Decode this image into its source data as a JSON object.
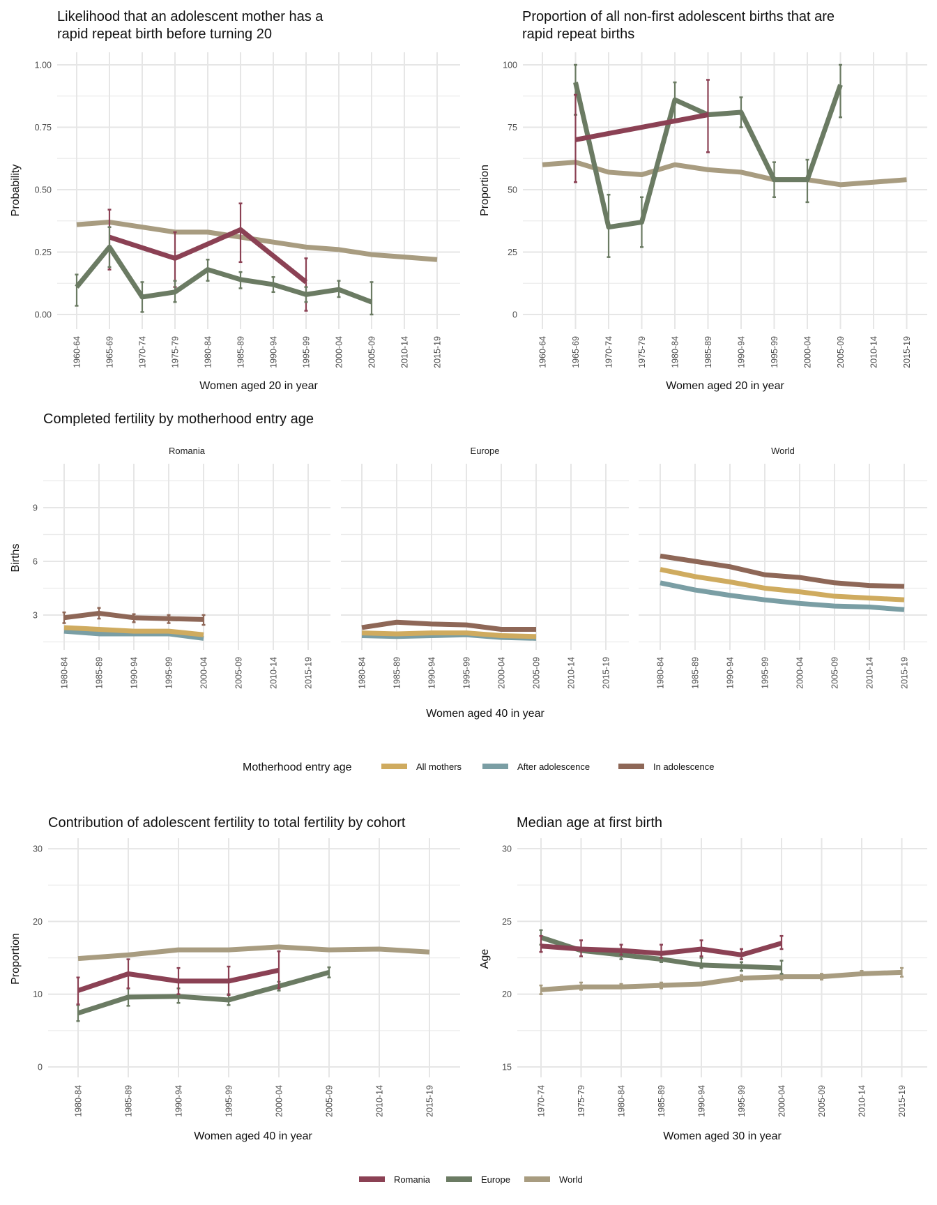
{
  "colors": {
    "Romania": "#8B4154",
    "Europe": "#6B7B63",
    "World": "#A89C80",
    "All mothers": "#CFAB5F",
    "After adolescence": "#7A9EA4",
    "In adolescence": "#8E6757"
  },
  "legend_region": {
    "entries": [
      "Romania",
      "Europe",
      "World"
    ]
  },
  "legend_entry": {
    "title": "Motherhood entry age",
    "entries": [
      "All mothers",
      "After adolescence",
      "In adolescence"
    ]
  },
  "chart_data": [
    {
      "id": "rapid-repeat-likelihood",
      "type": "line",
      "title_lines": [
        "Likelihood that an adolescent mother has a",
        "rapid repeat birth before turning 20"
      ],
      "xlabel": "Women aged 20 in year",
      "ylabel": "Probability",
      "ylim": [
        0,
        1
      ],
      "yticks": [
        0,
        0.25,
        0.5,
        0.75,
        1.0
      ],
      "ytick_labels": [
        "0.00",
        "0.25",
        "0.50",
        "0.75",
        "1.00"
      ],
      "grid": true,
      "categories": [
        "1960-64",
        "1965-69",
        "1970-74",
        "1975-79",
        "1980-84",
        "1985-89",
        "1990-94",
        "1995-99",
        "2000-04",
        "2005-09",
        "2010-14",
        "2015-19"
      ],
      "series": [
        {
          "name": "World",
          "values": [
            0.36,
            0.37,
            0.35,
            0.33,
            0.33,
            0.31,
            0.29,
            0.27,
            0.26,
            0.24,
            0.23,
            0.22
          ],
          "errors": null
        },
        {
          "name": "Romania",
          "values": [
            null,
            0.31,
            null,
            0.225,
            null,
            0.34,
            null,
            0.13,
            null,
            null,
            null,
            null
          ],
          "errors": [
            null,
            [
              0.18,
              0.42
            ],
            null,
            [
              0.11,
              0.33
            ],
            null,
            [
              0.21,
              0.445
            ],
            null,
            [
              0.015,
              0.225
            ],
            null,
            null,
            null,
            null
          ]
        },
        {
          "name": "Europe",
          "values": [
            0.11,
            0.27,
            0.07,
            0.09,
            0.18,
            0.14,
            0.12,
            0.08,
            0.1,
            0.05,
            null,
            null
          ],
          "errors": [
            [
              0.035,
              0.16
            ],
            [
              0.19,
              0.35
            ],
            [
              0.01,
              0.13
            ],
            [
              0.05,
              0.135
            ],
            [
              0.135,
              0.22
            ],
            [
              0.105,
              0.17
            ],
            [
              0.09,
              0.15
            ],
            [
              0.05,
              0.11
            ],
            [
              0.07,
              0.135
            ],
            [
              0.0,
              0.13
            ],
            null,
            null
          ]
        }
      ]
    },
    {
      "id": "rapid-repeat-proportion",
      "type": "line",
      "title_lines": [
        "Proportion of all non-first adolescent births that are",
        "rapid repeat births"
      ],
      "xlabel": "Women aged 20 in year",
      "ylabel": "Proportion",
      "ylim": [
        0,
        100
      ],
      "yticks": [
        0,
        25,
        50,
        75,
        100
      ],
      "ytick_labels": [
        "0",
        "25",
        "50",
        "75",
        "100"
      ],
      "grid": true,
      "categories": [
        "1960-64",
        "1965-69",
        "1970-74",
        "1975-79",
        "1980-84",
        "1985-89",
        "1990-94",
        "1995-99",
        "2000-04",
        "2005-09",
        "2010-14",
        "2015-19"
      ],
      "series": [
        {
          "name": "World",
          "values": [
            60,
            61,
            57,
            56,
            60,
            58,
            57,
            54,
            54,
            52,
            53,
            54
          ],
          "errors": null
        },
        {
          "name": "Europe",
          "values": [
            null,
            93,
            35,
            37,
            86,
            80,
            81,
            54,
            54,
            92,
            null,
            null
          ],
          "errors": [
            null,
            [
              80,
              100
            ],
            [
              23,
              48
            ],
            [
              27,
              47
            ],
            [
              78,
              93
            ],
            null,
            [
              75,
              87
            ],
            [
              47,
              61
            ],
            [
              45,
              62
            ],
            [
              79,
              100
            ],
            null,
            null
          ]
        },
        {
          "name": "Romania",
          "values": [
            null,
            70,
            null,
            null,
            null,
            80,
            null,
            null,
            null,
            null,
            null,
            null
          ],
          "errors": [
            null,
            [
              53,
              88
            ],
            null,
            null,
            null,
            [
              65,
              94
            ],
            null,
            null,
            null,
            null,
            null,
            null
          ]
        }
      ]
    },
    {
      "id": "completed-fertility",
      "type": "line",
      "title": "Completed fertility by motherhood entry age",
      "xlabel": "Women aged 40 in year",
      "ylabel": "Births",
      "yticks": [
        3,
        6,
        9
      ],
      "ytick_labels": [
        "3",
        "6",
        "9"
      ],
      "grid": true,
      "legend_position": "bottom",
      "categories": [
        "1980-84",
        "1985-89",
        "1990-94",
        "1995-99",
        "2000-04",
        "2005-09",
        "2010-14",
        "2015-19"
      ],
      "facets": [
        {
          "name": "Romania",
          "series": [
            {
              "name": "After adolescence",
              "values": [
                2.1,
                1.95,
                1.95,
                1.95,
                1.7,
                null,
                null,
                null
              ]
            },
            {
              "name": "All mothers",
              "values": [
                2.3,
                2.2,
                2.1,
                2.1,
                1.9,
                null,
                null,
                null
              ]
            },
            {
              "name": "In adolescence",
              "values": [
                2.85,
                3.1,
                2.85,
                2.8,
                2.75,
                null,
                null,
                null
              ],
              "errors": [
                [
                  2.55,
                  3.15
                ],
                [
                  2.8,
                  3.4
                ],
                [
                  2.6,
                  3.05
                ],
                [
                  2.55,
                  3.0
                ],
                [
                  2.45,
                  3.0
                ],
                null,
                null,
                null
              ]
            }
          ]
        },
        {
          "name": "Europe",
          "series": [
            {
              "name": "After adolescence",
              "values": [
                1.85,
                1.8,
                1.85,
                1.9,
                1.75,
                1.7,
                null,
                null
              ]
            },
            {
              "name": "All mothers",
              "values": [
                2.0,
                1.95,
                2.0,
                2.0,
                1.85,
                1.8,
                null,
                null
              ]
            },
            {
              "name": "In adolescence",
              "values": [
                2.3,
                2.6,
                2.5,
                2.45,
                2.2,
                2.2,
                null,
                null
              ]
            }
          ]
        },
        {
          "name": "World",
          "series": [
            {
              "name": "After adolescence",
              "values": [
                4.8,
                4.4,
                4.1,
                3.85,
                3.65,
                3.5,
                3.45,
                3.3
              ]
            },
            {
              "name": "All mothers",
              "values": [
                5.55,
                5.15,
                4.85,
                4.5,
                4.3,
                4.05,
                3.95,
                3.85
              ]
            },
            {
              "name": "In adolescence",
              "values": [
                6.3,
                6.0,
                5.7,
                5.25,
                5.1,
                4.8,
                4.65,
                4.6
              ]
            }
          ]
        }
      ]
    },
    {
      "id": "adolescent-contribution",
      "type": "line",
      "title": "Contribution of adolescent fertility to total fertility by cohort",
      "xlabel": "Women aged 40 in year",
      "ylabel": "Proportion",
      "ylim": [
        0,
        30
      ],
      "yticks": [
        0,
        10,
        20,
        30
      ],
      "ytick_labels": [
        "0",
        "10",
        "20",
        "30"
      ],
      "grid": true,
      "categories": [
        "1980-84",
        "1985-89",
        "1990-94",
        "1995-99",
        "2000-04",
        "2005-09",
        "2010-14",
        "2015-19"
      ],
      "series": [
        {
          "name": "World",
          "values": [
            14.9,
            15.4,
            16.1,
            16.1,
            16.5,
            16.1,
            16.2,
            15.8
          ],
          "errors": null
        },
        {
          "name": "Europe",
          "values": [
            7.4,
            9.6,
            9.7,
            9.2,
            11.1,
            13.0,
            null,
            null
          ],
          "errors": [
            [
              6.3,
              8.5
            ],
            [
              8.4,
              10.8
            ],
            [
              8.8,
              10.8
            ],
            [
              8.5,
              10.0
            ],
            [
              10.5,
              11.7
            ],
            [
              12.3,
              13.7
            ],
            null,
            null
          ]
        },
        {
          "name": "Romania",
          "values": [
            10.5,
            12.8,
            11.8,
            11.8,
            13.3,
            null,
            null,
            null
          ],
          "errors": [
            [
              8.6,
              12.3
            ],
            [
              10.8,
              14.8
            ],
            [
              10.0,
              13.6
            ],
            [
              9.9,
              13.8
            ],
            [
              10.8,
              15.9
            ],
            null,
            null,
            null
          ]
        }
      ]
    },
    {
      "id": "median-age-first-birth",
      "type": "line",
      "title": "Median age at first birth",
      "xlabel": "Women aged 30 in year",
      "ylabel": "Age",
      "ylim": [
        15,
        30
      ],
      "yticks": [
        15,
        20,
        25,
        30
      ],
      "ytick_labels": [
        "15",
        "20",
        "25",
        "30"
      ],
      "grid": true,
      "legend_position": "bottom",
      "categories": [
        "1970-74",
        "1975-79",
        "1980-84",
        "1985-89",
        "1990-94",
        "1995-99",
        "2000-04",
        "2005-09",
        "2010-14",
        "2015-19"
      ],
      "series": [
        {
          "name": "World",
          "values": [
            20.3,
            20.5,
            20.5,
            20.6,
            20.7,
            21.1,
            21.2,
            21.2,
            21.4,
            21.5
          ],
          "errors": [
            [
              20.0,
              20.6
            ],
            [
              20.3,
              20.8
            ],
            [
              20.4,
              20.7
            ],
            [
              20.4,
              20.8
            ],
            null,
            [
              20.9,
              21.3
            ],
            [
              21.0,
              21.4
            ],
            [
              21.0,
              21.4
            ],
            [
              21.3,
              21.6
            ],
            [
              21.2,
              21.8
            ]
          ]
        },
        {
          "name": "Europe",
          "values": [
            23.9,
            23.0,
            22.7,
            22.4,
            22.0,
            21.9,
            21.8,
            null,
            null,
            null
          ],
          "errors": [
            [
              23.4,
              24.4
            ],
            null,
            [
              22.4,
              23.0
            ],
            [
              22.2,
              22.7
            ],
            [
              21.8,
              22.5
            ],
            [
              21.6,
              22.2
            ],
            [
              21.4,
              22.3
            ],
            null,
            null,
            null
          ]
        },
        {
          "name": "Romania",
          "values": [
            23.3,
            23.1,
            23.0,
            22.8,
            23.1,
            22.7,
            23.5,
            null,
            null,
            null
          ],
          "errors": [
            [
              22.9,
              24.0
            ],
            [
              22.6,
              23.7
            ],
            [
              22.7,
              23.4
            ],
            [
              22.5,
              23.4
            ],
            [
              22.6,
              23.7
            ],
            [
              22.4,
              23.1
            ],
            [
              23.1,
              24.0
            ],
            null,
            null,
            null
          ]
        }
      ]
    }
  ]
}
